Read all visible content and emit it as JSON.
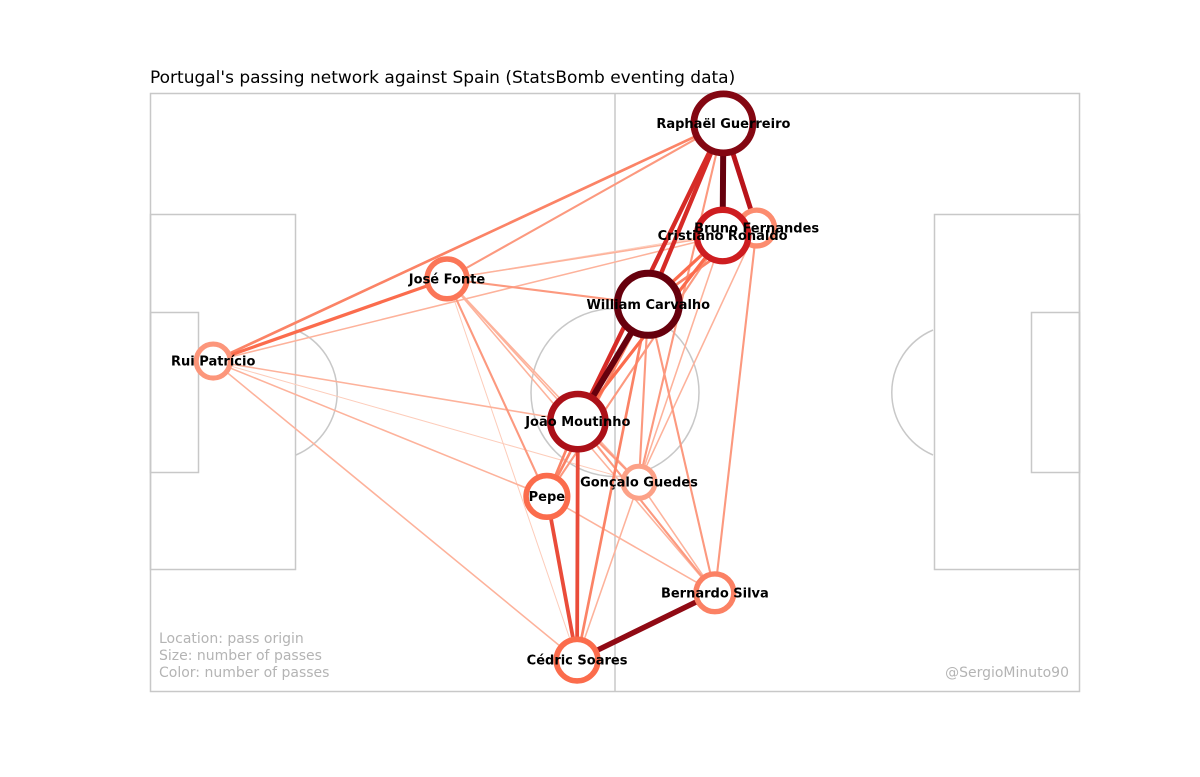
{
  "title": "Portugal's passing network against Spain (StatsBomb eventing data)",
  "notes": {
    "location": "Location: pass origin",
    "size": "Size: number of passes",
    "color": "Color: number of passes",
    "credit": "@SergioMinuto90"
  },
  "chart_data": {
    "type": "network",
    "title": "Portugal's passing network against Spain (StatsBomb eventing data)",
    "pitch": {
      "length": 120,
      "width": 80,
      "grid": false
    },
    "colors": {
      "pitch_lines": "#c8c8c8",
      "colormap": "Reds",
      "node_fill": "#ffffff"
    },
    "nodes": [
      {
        "name": "Raphaël Guerreiro",
        "x": 74.0,
        "y": 4.0,
        "passes": 42
      },
      {
        "name": "Bruno Fernandes",
        "x": 78.3,
        "y": 18.0,
        "passes": 18
      },
      {
        "name": "Cristiano Ronaldo",
        "x": 73.9,
        "y": 19.0,
        "passes": 34
      },
      {
        "name": "José Fonte",
        "x": 38.3,
        "y": 24.8,
        "passes": 22
      },
      {
        "name": "William Carvalho",
        "x": 64.3,
        "y": 28.2,
        "passes": 45
      },
      {
        "name": "Rui Patrício",
        "x": 8.1,
        "y": 35.8,
        "passes": 16
      },
      {
        "name": "João Moutinho",
        "x": 55.2,
        "y": 43.9,
        "passes": 38
      },
      {
        "name": "Gonçalo Guedes",
        "x": 63.1,
        "y": 52.0,
        "passes": 14
      },
      {
        "name": "Pepe",
        "x": 51.2,
        "y": 53.9,
        "passes": 24
      },
      {
        "name": "Bernardo Silva",
        "x": 72.9,
        "y": 66.8,
        "passes": 20
      },
      {
        "name": "Cédric Soares",
        "x": 55.1,
        "y": 75.8,
        "passes": 24
      }
    ],
    "edges": [
      {
        "source": "Raphaël Guerreiro",
        "target": "Cristiano Ronaldo",
        "passes": 10
      },
      {
        "source": "Raphaël Guerreiro",
        "target": "Bruno Fernandes",
        "passes": 8
      },
      {
        "source": "Raphaël Guerreiro",
        "target": "William Carvalho",
        "passes": 7
      },
      {
        "source": "Raphaël Guerreiro",
        "target": "João Moutinho",
        "passes": 7
      },
      {
        "source": "Raphaël Guerreiro",
        "target": "José Fonte",
        "passes": 3
      },
      {
        "source": "Raphaël Guerreiro",
        "target": "Rui Patrício",
        "passes": 4
      },
      {
        "source": "Raphaël Guerreiro",
        "target": "Gonçalo Guedes",
        "passes": 3
      },
      {
        "source": "William Carvalho",
        "target": "João Moutinho",
        "passes": 10
      },
      {
        "source": "William Carvalho",
        "target": "Cristiano Ronaldo",
        "passes": 5
      },
      {
        "source": "William Carvalho",
        "target": "Bruno Fernandes",
        "passes": 4
      },
      {
        "source": "William Carvalho",
        "target": "José Fonte",
        "passes": 3
      },
      {
        "source": "William Carvalho",
        "target": "Pepe",
        "passes": 4
      },
      {
        "source": "William Carvalho",
        "target": "Gonçalo Guedes",
        "passes": 3
      },
      {
        "source": "William Carvalho",
        "target": "Bernardo Silva",
        "passes": 3
      },
      {
        "source": "William Carvalho",
        "target": "Cédric Soares",
        "passes": 4
      },
      {
        "source": "Cristiano Ronaldo",
        "target": "João Moutinho",
        "passes": 5
      },
      {
        "source": "Cristiano Ronaldo",
        "target": "José Fonte",
        "passes": 2
      },
      {
        "source": "Cristiano Ronaldo",
        "target": "Rui Patrício",
        "passes": 2
      },
      {
        "source": "Cristiano Ronaldo",
        "target": "Gonçalo Guedes",
        "passes": 2
      },
      {
        "source": "Cristiano Ronaldo",
        "target": "Pepe",
        "passes": 3
      },
      {
        "source": "Bruno Fernandes",
        "target": "Bernardo Silva",
        "passes": 3
      },
      {
        "source": "Bruno Fernandes",
        "target": "Gonçalo Guedes",
        "passes": 2
      },
      {
        "source": "Bruno Fernandes",
        "target": "José Fonte",
        "passes": 1
      },
      {
        "source": "José Fonte",
        "target": "Rui Patrício",
        "passes": 5
      },
      {
        "source": "José Fonte",
        "target": "Pepe",
        "passes": 3
      },
      {
        "source": "José Fonte",
        "target": "João Moutinho",
        "passes": 2
      },
      {
        "source": "José Fonte",
        "target": "Gonçalo Guedes",
        "passes": 2
      },
      {
        "source": "José Fonte",
        "target": "Bernardo Silva",
        "passes": 2
      },
      {
        "source": "José Fonte",
        "target": "Cédric Soares",
        "passes": 1
      },
      {
        "source": "Rui Patrício",
        "target": "João Moutinho",
        "passes": 2
      },
      {
        "source": "Rui Patrício",
        "target": "Pepe",
        "passes": 2
      },
      {
        "source": "Rui Patrício",
        "target": "Cédric Soares",
        "passes": 2
      },
      {
        "source": "Rui Patrício",
        "target": "Gonçalo Guedes",
        "passes": 1
      },
      {
        "source": "João Moutinho",
        "target": "Cédric Soares",
        "passes": 6
      },
      {
        "source": "João Moutinho",
        "target": "Pepe",
        "passes": 4
      },
      {
        "source": "João Moutinho",
        "target": "Gonçalo Guedes",
        "passes": 3
      },
      {
        "source": "João Moutinho",
        "target": "Bernardo Silva",
        "passes": 3
      },
      {
        "source": "Pepe",
        "target": "Cédric Soares",
        "passes": 6
      },
      {
        "source": "Pepe",
        "target": "Bernardo Silva",
        "passes": 2
      },
      {
        "source": "Cédric Soares",
        "target": "Bernardo Silva",
        "passes": 9
      },
      {
        "source": "Cédric Soares",
        "target": "Gonçalo Guedes",
        "passes": 2
      },
      {
        "source": "Gonçalo Guedes",
        "target": "Bernardo Silva",
        "passes": 2
      }
    ]
  }
}
